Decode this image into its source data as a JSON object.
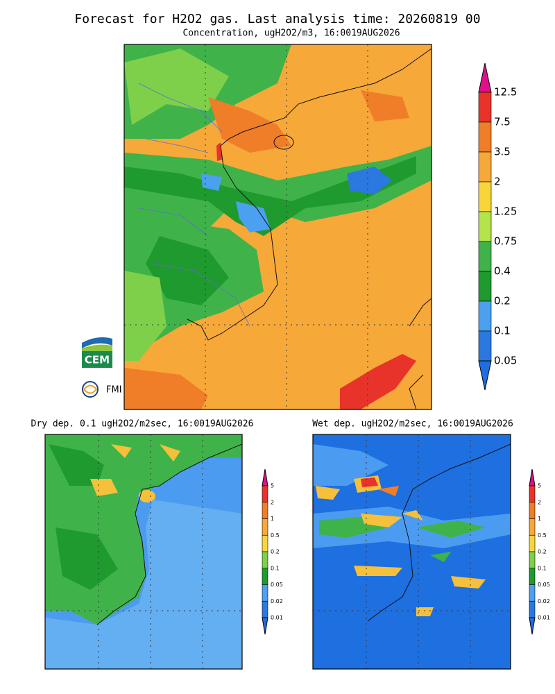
{
  "title": "Forecast for H2O2 gas. Last analysis time: 20260819 00",
  "main_map": {
    "subtitle": "Concentration, ugH2O2/m3, 16:0019AUG2026",
    "colorbar": [
      "12.5",
      "7.5",
      "3.5",
      "2",
      "1.25",
      "0.75",
      "0.4",
      "0.2",
      "0.1",
      "0.05"
    ]
  },
  "dry_map": {
    "subtitle": "Dry dep. 0.1 ugH2O2/m2sec, 16:0019AUG2026",
    "colorbar": [
      "5",
      "2",
      "1",
      "0.5",
      "0.2",
      "0.1",
      "0.05",
      "0.02",
      "0.01"
    ]
  },
  "wet_map": {
    "subtitle": "Wet dep. ugH2O2/m2sec, 16:0019AUG2026",
    "colorbar": [
      "5",
      "2",
      "1",
      "0.5",
      "0.2",
      "0.1",
      "0.05",
      "0.02",
      "0.01"
    ]
  },
  "logos": {
    "cem": "CEM",
    "fmi": "FMI"
  }
}
